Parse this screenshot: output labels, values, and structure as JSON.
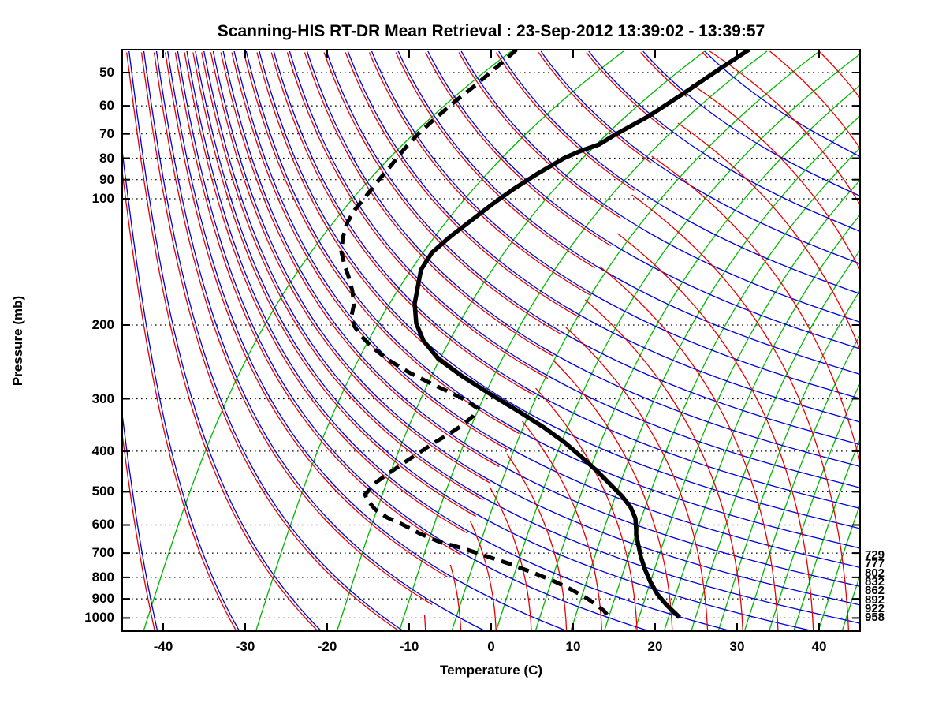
{
  "chart_data": {
    "type": "line",
    "variant": "skew-t-log-p-sounding",
    "title": "Scanning-HIS RT-DR Mean Retrieval : 23-Sep-2012 13:39:02 - 13:39:57",
    "xlabel": "Temperature (C)",
    "ylabel": "Pressure (mb)",
    "x_ticks": [
      -40,
      -30,
      -20,
      -10,
      0,
      10,
      20,
      30,
      40
    ],
    "xlim": [
      -45,
      45
    ],
    "y_ticks": [
      50,
      60,
      70,
      80,
      90,
      100,
      200,
      300,
      400,
      500,
      600,
      700,
      800,
      900,
      1000
    ],
    "ylim_pressure_mb": [
      44,
      1074
    ],
    "y_scale": "log",
    "grid": "dotted horizontal isobars at every labeled pressure",
    "legend_position": "none",
    "colors": {
      "temperature_profile": "#000000",
      "dewpoint_profile": "#000000",
      "isobar_grid": "#000000",
      "green_lines": "#00b900",
      "blue_lines": "#0000dd",
      "red_lines": "#e80000"
    },
    "right_edge_labels": [
      "729",
      "777",
      "802",
      "832",
      "862",
      "892",
      "922",
      "958"
    ],
    "series": [
      {
        "name": "temperature",
        "style": "solid",
        "width": 5.5,
        "points_T_p": [
          [
            31.44,
            44.1
          ],
          [
            27.79,
            49.1
          ],
          [
            23.56,
            55.9
          ],
          [
            19.23,
            63.5
          ],
          [
            14.9,
            70.7
          ],
          [
            13.17,
            74.2
          ],
          [
            10.96,
            76.8
          ],
          [
            8.94,
            79.9
          ],
          [
            5.67,
            87.1
          ],
          [
            2.69,
            94.9
          ],
          [
            0.0,
            103.5
          ],
          [
            -2.5,
            112.9
          ],
          [
            -5.0,
            123.1
          ],
          [
            -7.21,
            134.3
          ],
          [
            -8.56,
            147.7
          ],
          [
            -9.33,
            177.9
          ],
          [
            -9.13,
            198.1
          ],
          [
            -8.27,
            217.9
          ],
          [
            -6.44,
            240.8
          ],
          [
            -3.56,
            264.8
          ],
          [
            -0.1,
            292.4
          ],
          [
            3.37,
            321.5
          ],
          [
            6.54,
            352.1
          ],
          [
            8.94,
            380.9
          ],
          [
            10.96,
            411.9
          ],
          [
            12.88,
            445.5
          ],
          [
            14.52,
            479.7
          ],
          [
            15.96,
            512.0
          ],
          [
            17.02,
            544.2
          ],
          [
            17.6,
            578.3
          ],
          [
            17.69,
            614.7
          ],
          [
            17.69,
            633.6
          ],
          [
            17.98,
            673.7
          ],
          [
            18.27,
            716.2
          ],
          [
            18.75,
            764.6
          ],
          [
            19.42,
            819.6
          ],
          [
            20.29,
            878.3
          ],
          [
            21.44,
            933.7
          ],
          [
            22.6,
            979.9
          ],
          [
            22.98,
            997.0
          ]
        ]
      },
      {
        "name": "dewpoint",
        "style": "dashed",
        "width": 5,
        "points_T_p": [
          [
            3.08,
            44.1
          ],
          [
            1.06,
            47.8
          ],
          [
            -1.92,
            53.6
          ],
          [
            -4.33,
            58.4
          ],
          [
            -6.83,
            64.3
          ],
          [
            -8.94,
            70.1
          ],
          [
            -10.67,
            76.4
          ],
          [
            -12.21,
            83.3
          ],
          [
            -13.85,
            90.9
          ],
          [
            -15.29,
            98.7
          ],
          [
            -16.63,
            106.3
          ],
          [
            -17.6,
            114.4
          ],
          [
            -18.08,
            123.7
          ],
          [
            -18.27,
            133.7
          ],
          [
            -17.88,
            143.9
          ],
          [
            -17.31,
            154.9
          ],
          [
            -16.92,
            166.0
          ],
          [
            -16.73,
            178.6
          ],
          [
            -17.02,
            189.8
          ],
          [
            -16.73,
            200.7
          ],
          [
            -15.77,
            213.3
          ],
          [
            -14.42,
            226.7
          ],
          [
            -12.6,
            241.8
          ],
          [
            -9.9,
            260.3
          ],
          [
            -7.21,
            276.5
          ],
          [
            -4.9,
            290.1
          ],
          [
            -3.27,
            301.2
          ],
          [
            -1.63,
            316.1
          ],
          [
            -2.21,
            330.1
          ],
          [
            -3.46,
            346.1
          ],
          [
            -5.19,
            364.6
          ],
          [
            -7.02,
            382.5
          ],
          [
            -8.75,
            402.9
          ],
          [
            -10.48,
            424.4
          ],
          [
            -12.31,
            449.0
          ],
          [
            -13.94,
            473.2
          ],
          [
            -15.38,
            507.4
          ],
          [
            -15.1,
            523.1
          ],
          [
            -14.13,
            551.1
          ],
          [
            -12.69,
            575.8
          ],
          [
            -10.96,
            596.2
          ],
          [
            -8.75,
            628.2
          ],
          [
            -6.25,
            658.9
          ],
          [
            -3.46,
            682.0
          ],
          [
            -0.58,
            712.1
          ],
          [
            2.31,
            743.6
          ],
          [
            5.1,
            779.7
          ],
          [
            7.5,
            814.2
          ],
          [
            9.71,
            853.8
          ],
          [
            11.63,
            896.5
          ],
          [
            12.88,
            931.9
          ],
          [
            13.75,
            960.6
          ],
          [
            14.13,
            981.6
          ]
        ]
      }
    ],
    "background_families": {
      "green_surface_temps_C": [
        -42.4,
        -28.7,
        -18.8,
        -11.2,
        -4.8,
        0.6,
        5.4,
        9.7,
        13.8,
        17.5,
        21.1,
        24.4,
        27.7,
        30.9,
        33.9,
        36.9,
        39.9,
        42.8,
        45.7
      ],
      "blue_surface_temps_C_start_step_count": [
        -40.7,
        10,
        29
      ],
      "red_surface_temps_C_start_step_count": [
        -8.0,
        4.3,
        23
      ]
    }
  }
}
